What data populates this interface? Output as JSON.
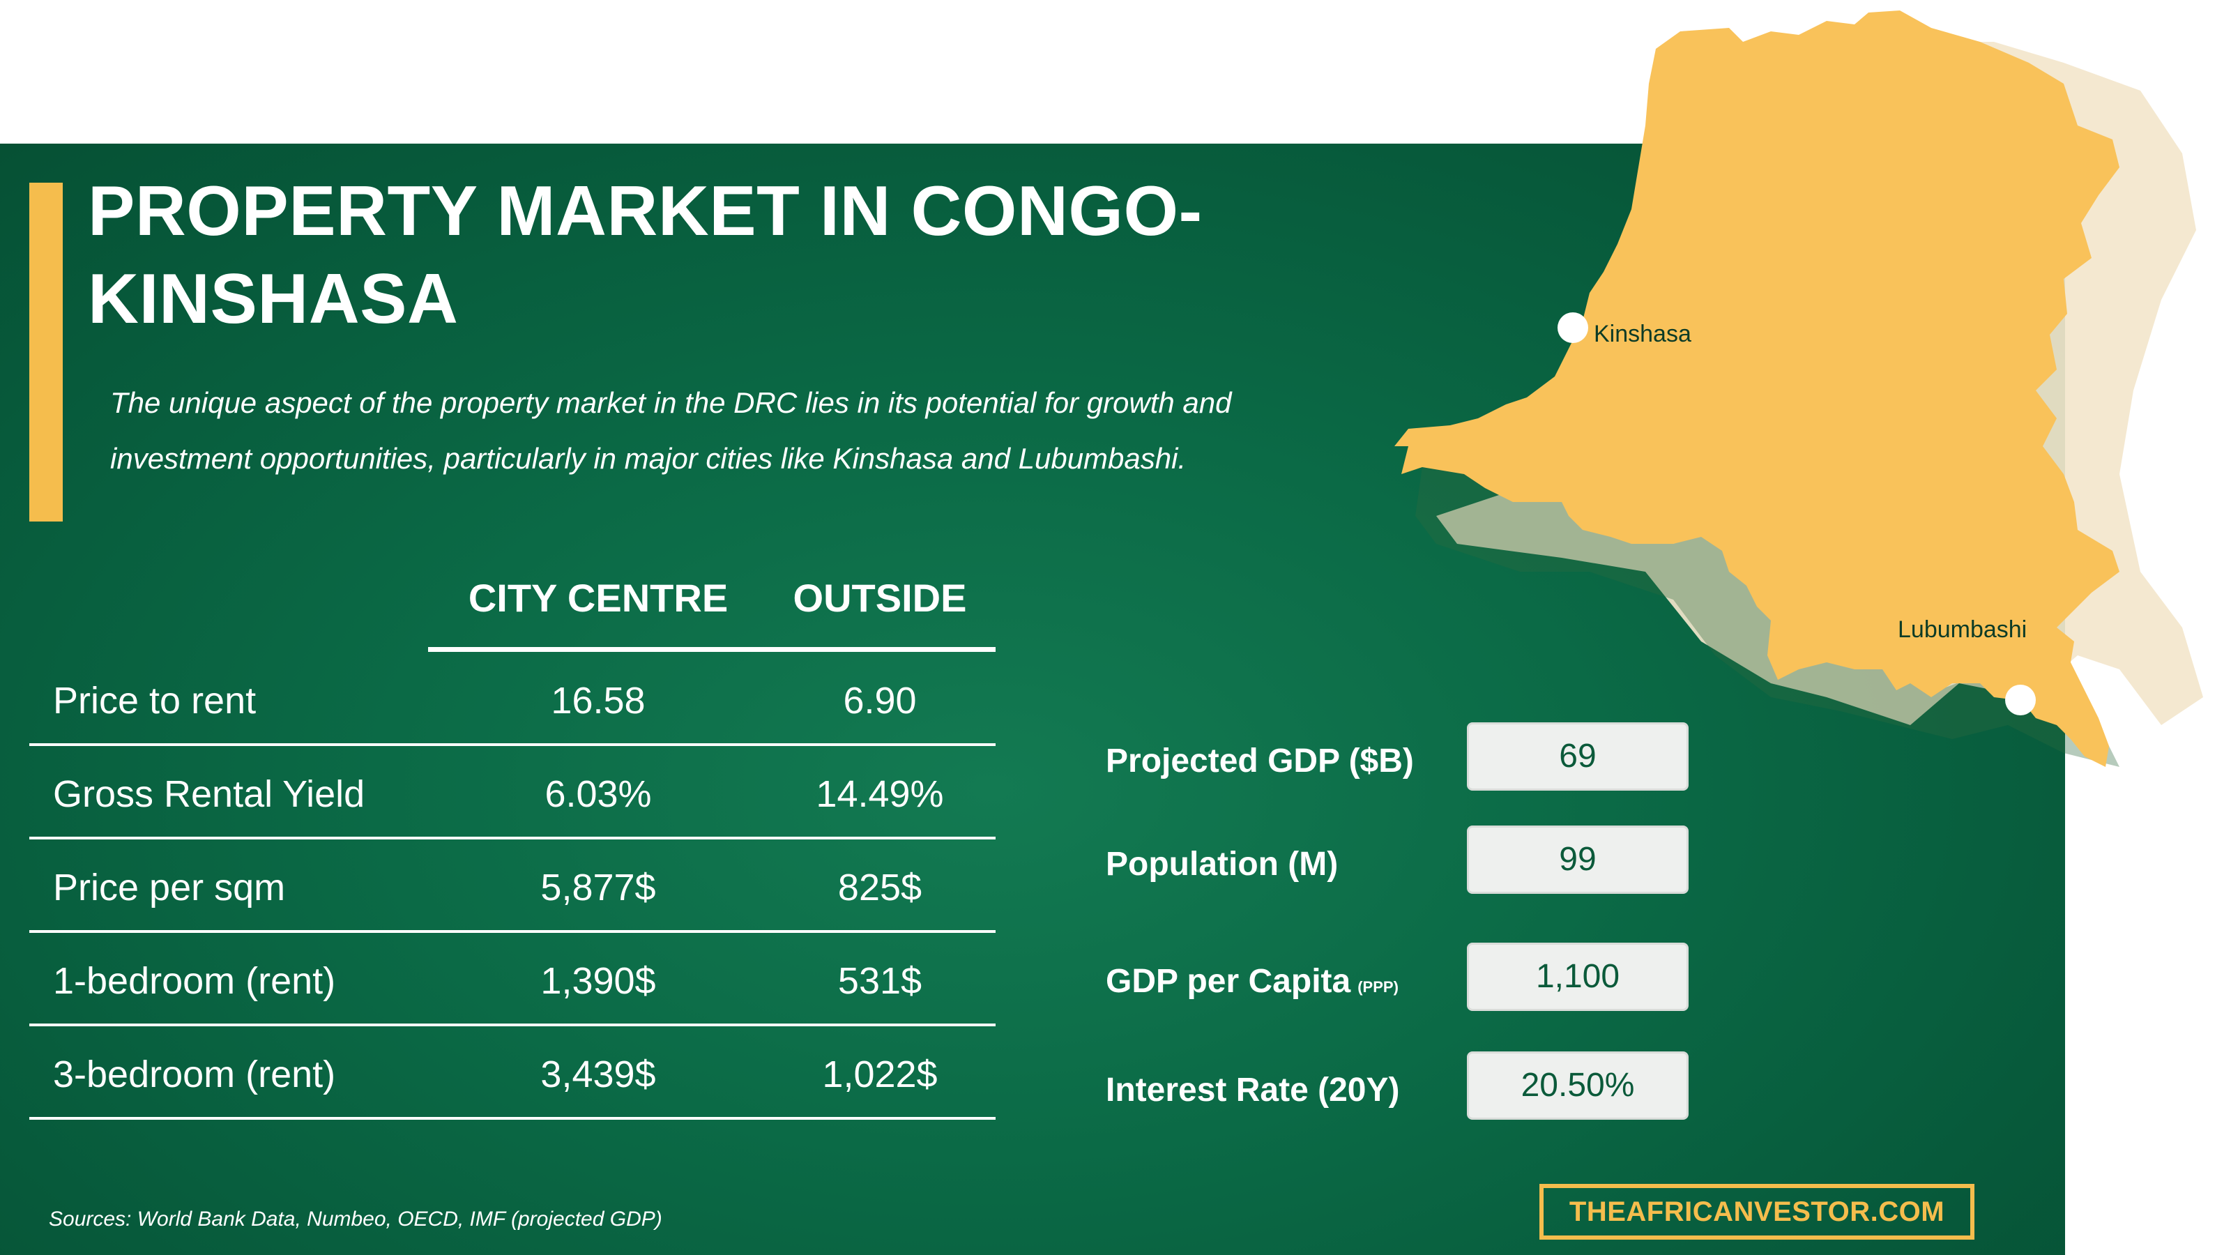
{
  "title": "PROPERTY MARKET IN CONGO-KINSHASA",
  "description": "The unique aspect of the property market in the DRC lies in its potential for growth and investment opportunities, particularly in major cities like Kinshasa and Lubumbashi.",
  "table": {
    "columns": [
      "CITY CENTRE",
      "OUTSIDE"
    ],
    "rows": [
      {
        "label": "Price to rent",
        "city_centre": "16.58",
        "outside": "6.90"
      },
      {
        "label": "Gross Rental Yield",
        "city_centre": "6.03%",
        "outside": "14.49%"
      },
      {
        "label": "Price per sqm",
        "city_centre": "5,877$",
        "outside": "825$"
      },
      {
        "label": "1-bedroom (rent)",
        "city_centre": "1,390$",
        "outside": "531$"
      },
      {
        "label": "3-bedroom (rent)",
        "city_centre": "3,439$",
        "outside": "1,022$"
      }
    ]
  },
  "stats": [
    {
      "label": "Projected GDP ($B)",
      "sub": "",
      "value": "69"
    },
    {
      "label": "Population (M)",
      "sub": "",
      "value": "99"
    },
    {
      "label": "GDP per Capita",
      "sub": "(PPP)",
      "value": "1,100"
    },
    {
      "label": "Interest Rate (20Y)",
      "sub": "",
      "value": "20.50%"
    }
  ],
  "map": {
    "country_fill": "#f9c25a",
    "shadow_fill": "#f3e6cc",
    "cities": [
      "Kinshasa",
      "Lubumbashi"
    ]
  },
  "sources": "Sources:  World Bank Data, Numbeo, OECD, IMF (projected GDP)",
  "site": "THEAFRICANVESTOR.COM",
  "colors": {
    "panel_green": "#0b6a46",
    "accent": "#f5bd4d",
    "text": "#ffffff"
  }
}
